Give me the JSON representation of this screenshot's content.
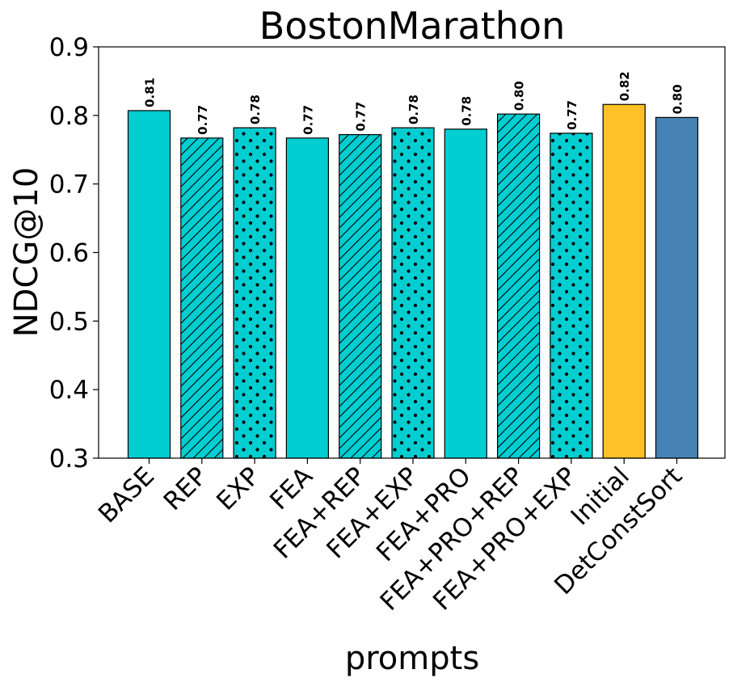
{
  "chart_data": {
    "type": "bar",
    "title": "BostonMarathon",
    "xlabel": "prompts",
    "ylabel": "NDCG@10",
    "ylim": [
      0.3,
      0.9
    ],
    "yticks": [
      "0.3",
      "0.4",
      "0.5",
      "0.6",
      "0.7",
      "0.8",
      "0.9"
    ],
    "grid": false,
    "categories": [
      "BASE",
      "REP",
      "EXP",
      "FEA",
      "FEA+REP",
      "FEA+EXP",
      "FEA+PRO",
      "FEA+PRO+REP",
      "FEA+PRO+EXP",
      "Initial",
      "DetConstSort"
    ],
    "values": [
      0.807,
      0.767,
      0.782,
      0.767,
      0.772,
      0.782,
      0.78,
      0.802,
      0.774,
      0.816,
      0.797
    ],
    "value_labels": [
      "0.81",
      "0.77",
      "0.78",
      "0.77",
      "0.77",
      "0.78",
      "0.78",
      "0.80",
      "0.77",
      "0.82",
      "0.80"
    ],
    "colors": [
      "#00CED1",
      "#00CED1",
      "#00CED1",
      "#00CED1",
      "#00CED1",
      "#00CED1",
      "#00CED1",
      "#00CED1",
      "#00CED1",
      "#FFC125",
      "#4682B4"
    ],
    "hatches": [
      "none",
      "diagonal",
      "dots",
      "none",
      "diagonal",
      "dots",
      "none",
      "diagonal",
      "dots",
      "none",
      "none"
    ]
  }
}
